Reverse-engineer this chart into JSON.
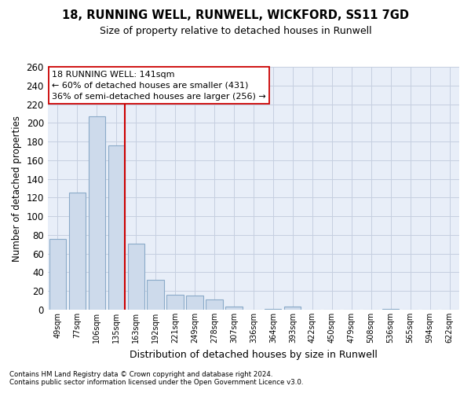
{
  "title": "18, RUNNING WELL, RUNWELL, WICKFORD, SS11 7GD",
  "subtitle": "Size of property relative to detached houses in Runwell",
  "xlabel": "Distribution of detached houses by size in Runwell",
  "ylabel": "Number of detached properties",
  "footnote1": "Contains HM Land Registry data © Crown copyright and database right 2024.",
  "footnote2": "Contains public sector information licensed under the Open Government Licence v3.0.",
  "annotation_line1": "18 RUNNING WELL: 141sqm",
  "annotation_line2": "← 60% of detached houses are smaller (431)",
  "annotation_line3": "36% of semi-detached houses are larger (256) →",
  "bar_color": "#cddaeb",
  "bar_edge_color": "#8aaac8",
  "vline_color": "#cc0000",
  "vline_x_idx": 3,
  "grid_color": "#c5cfe0",
  "background_color": "#e8eef8",
  "categories": [
    "49sqm",
    "77sqm",
    "106sqm",
    "135sqm",
    "163sqm",
    "192sqm",
    "221sqm",
    "249sqm",
    "278sqm",
    "307sqm",
    "336sqm",
    "364sqm",
    "393sqm",
    "422sqm",
    "450sqm",
    "479sqm",
    "508sqm",
    "536sqm",
    "565sqm",
    "594sqm",
    "622sqm"
  ],
  "values": [
    76,
    125,
    207,
    176,
    71,
    32,
    16,
    15,
    11,
    3,
    0,
    1,
    3,
    0,
    0,
    0,
    0,
    1,
    0,
    0,
    0
  ],
  "ylim": [
    0,
    260
  ],
  "yticks": [
    0,
    20,
    40,
    60,
    80,
    100,
    120,
    140,
    160,
    180,
    200,
    220,
    240,
    260
  ]
}
